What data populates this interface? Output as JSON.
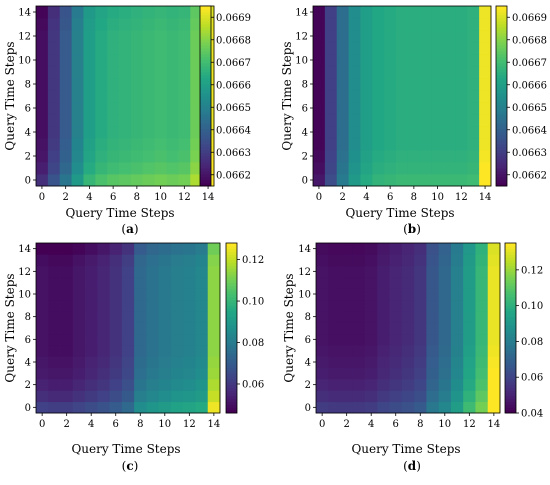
{
  "chart_data": [
    {
      "type": "heatmap",
      "caption": "(a)",
      "xlabel": "Query Time Steps",
      "ylabel": "Query Time Steps",
      "x_ticks": [
        "0",
        "2",
        "4",
        "6",
        "8",
        "10",
        "12",
        "14"
      ],
      "y_ticks": [
        "0",
        "2",
        "4",
        "6",
        "8",
        "10",
        "12",
        "14"
      ],
      "colorbar_ticks": [
        "0.0662",
        "0.0663",
        "0.0664",
        "0.0665",
        "0.0666",
        "0.0667",
        "0.0668",
        "0.0669"
      ],
      "vmin": 0.06615,
      "vmax": 0.06695,
      "colormap": "viridis",
      "column_values": [
        0.06618,
        0.06628,
        0.06638,
        0.0665,
        0.0666,
        0.06664,
        0.06666,
        0.06667,
        0.06668,
        0.06669,
        0.0667,
        0.06669,
        0.0667,
        0.06677,
        0.06693
      ],
      "row_offsets": [
        8e-05,
        4e-05,
        2e-05,
        1e-05,
        0,
        0,
        0,
        0,
        0,
        0,
        0,
        0,
        0,
        -1e-05,
        -2e-05
      ]
    },
    {
      "type": "heatmap",
      "caption": "(b)",
      "xlabel": "Query Time Steps",
      "ylabel": "Query Time Steps",
      "x_ticks": [
        "0",
        "2",
        "4",
        "6",
        "8",
        "10",
        "12",
        "14"
      ],
      "y_ticks": [
        "0",
        "2",
        "4",
        "6",
        "8",
        "10",
        "12",
        "14"
      ],
      "colorbar_ticks": [
        "0.0662",
        "0.0663",
        "0.0664",
        "0.0665",
        "0.0666",
        "0.0667",
        "0.0668",
        "0.0669"
      ],
      "vmin": 0.06615,
      "vmax": 0.06695,
      "colormap": "viridis",
      "column_values": [
        0.06616,
        0.0663,
        0.06644,
        0.06654,
        0.0666,
        0.06663,
        0.06664,
        0.06665,
        0.06665,
        0.06665,
        0.06665,
        0.06665,
        0.06665,
        0.06666,
        0.06693
      ],
      "row_offsets": [
        4e-05,
        2e-05,
        1e-05,
        0,
        0,
        0,
        0,
        0,
        0,
        0,
        0,
        0,
        0,
        0,
        0
      ]
    },
    {
      "type": "heatmap",
      "caption": "(c)",
      "xlabel": "Query Time Steps",
      "ylabel": "Query Time Steps",
      "x_ticks": [
        "0",
        "2",
        "4",
        "6",
        "8",
        "10",
        "12",
        "14"
      ],
      "y_ticks": [
        "0",
        "2",
        "4",
        "6",
        "8",
        "10",
        "12",
        "14"
      ],
      "colorbar_ticks": [
        "0.06",
        "0.08",
        "0.10",
        "0.12"
      ],
      "vmin": 0.046,
      "vmax": 0.128,
      "colormap": "viridis",
      "column_values": [
        0.05,
        0.049,
        0.049,
        0.051,
        0.053,
        0.055,
        0.058,
        0.062,
        0.074,
        0.077,
        0.079,
        0.081,
        0.082,
        0.084,
        0.114
      ],
      "row_offsets": [
        0.012,
        0.007,
        0.004,
        0.002,
        0.001,
        0,
        0,
        0,
        0,
        0,
        0,
        0,
        0,
        -0.001,
        -0.004
      ]
    },
    {
      "type": "heatmap",
      "caption": "(d)",
      "xlabel": "Query Time Steps",
      "ylabel": "Query Time Steps",
      "x_ticks": [
        "0",
        "2",
        "4",
        "6",
        "8",
        "10",
        "12",
        "14"
      ],
      "y_ticks": [
        "0",
        "2",
        "4",
        "6",
        "8",
        "10",
        "12",
        "14"
      ],
      "colorbar_ticks": [
        "0.04",
        "0.06",
        "0.08",
        "0.10",
        "0.12"
      ],
      "vmin": 0.04,
      "vmax": 0.135,
      "colormap": "viridis",
      "column_values": [
        0.045,
        0.044,
        0.044,
        0.044,
        0.045,
        0.048,
        0.05,
        0.052,
        0.055,
        0.066,
        0.072,
        0.081,
        0.093,
        0.103,
        0.132
      ],
      "row_offsets": [
        0.012,
        0.008,
        0.005,
        0.003,
        0.002,
        0.001,
        0,
        0,
        0,
        0,
        0,
        0,
        0,
        -0.001,
        -0.002
      ]
    }
  ]
}
